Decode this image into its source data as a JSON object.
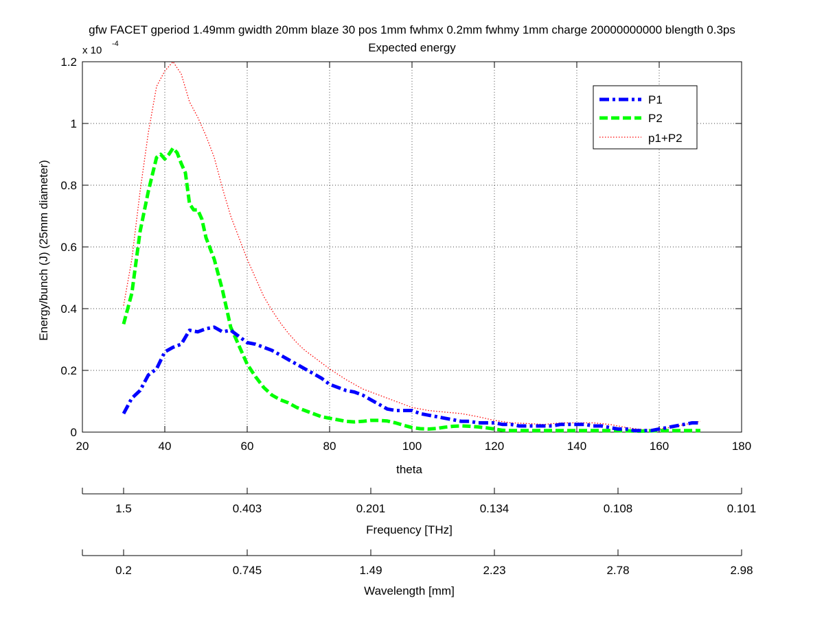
{
  "chart_data": {
    "type": "line",
    "title": "gfw FACET gperiod 1.49mm gwidth 20mm blaze 30 pos 1mm fwhmx 0.2mm fwhmy 1mm charge 20000000000 blength 0.3ps",
    "subtitle": "Expected energy",
    "xlabel": "theta",
    "ylabel": "Energy/bunch (J) (25mm diameter)",
    "y_exponent_label": {
      "base": "x 10",
      "exponent": "-4"
    },
    "xlim": [
      20,
      180
    ],
    "ylim": [
      0,
      0.00012
    ],
    "x_ticks": [
      20,
      40,
      60,
      80,
      100,
      120,
      140,
      160,
      180
    ],
    "y_ticks": [
      0,
      2e-05,
      4e-05,
      6e-05,
      8e-05,
      0.0001,
      0.00012
    ],
    "y_tick_labels": [
      "0",
      "0.2",
      "0.4",
      "0.6",
      "0.8",
      "1",
      "1.2"
    ],
    "grid": true,
    "legend_position": "top-right",
    "secondary_axes": [
      {
        "label": "Frequency [THz]",
        "ticks": [
          {
            "theta": 30,
            "label": "1.5"
          },
          {
            "theta": 60,
            "label": "0.403"
          },
          {
            "theta": 90,
            "label": "0.201"
          },
          {
            "theta": 120,
            "label": "0.134"
          },
          {
            "theta": 150,
            "label": "0.108"
          },
          {
            "theta": 180,
            "label": "0.101"
          }
        ]
      },
      {
        "label": "Wavelength [mm]",
        "ticks": [
          {
            "theta": 30,
            "label": "0.2"
          },
          {
            "theta": 60,
            "label": "0.745"
          },
          {
            "theta": 90,
            "label": "1.49"
          },
          {
            "theta": 120,
            "label": "2.23"
          },
          {
            "theta": 150,
            "label": "2.78"
          },
          {
            "theta": 180,
            "label": "2.98"
          }
        ]
      }
    ],
    "series": [
      {
        "name": "P1",
        "color": "#0000ff",
        "style": "dashdot",
        "x": [
          30,
          32,
          34,
          36,
          38,
          40,
          42,
          44,
          46,
          48,
          50,
          52,
          54,
          56,
          58,
          60,
          62,
          64,
          66,
          68,
          70,
          72,
          74,
          76,
          78,
          80,
          82,
          84,
          86,
          88,
          90,
          92,
          94,
          96,
          98,
          100,
          102,
          104,
          106,
          108,
          110,
          112,
          114,
          116,
          118,
          120,
          122,
          124,
          126,
          128,
          130,
          132,
          134,
          136,
          138,
          140,
          142,
          144,
          146,
          148,
          150,
          152,
          154,
          156,
          158,
          160,
          162,
          164,
          166,
          168,
          170
        ],
        "values": [
          6e-06,
          1.1e-05,
          1.35e-05,
          1.85e-05,
          2.05e-05,
          2.6e-05,
          2.75e-05,
          2.85e-05,
          3.3e-05,
          3.25e-05,
          3.35e-05,
          3.4e-05,
          3.25e-05,
          3.3e-05,
          3.1e-05,
          2.9e-05,
          2.85e-05,
          2.75e-05,
          2.65e-05,
          2.5e-05,
          2.35e-05,
          2.2e-05,
          2.05e-05,
          1.9e-05,
          1.75e-05,
          1.55e-05,
          1.45e-05,
          1.35e-05,
          1.3e-05,
          1.2e-05,
          1.05e-05,
          9e-06,
          7.5e-06,
          7e-06,
          7e-06,
          7e-06,
          6e-06,
          5.5e-06,
          5e-06,
          4.5e-06,
          4e-06,
          3.5e-06,
          3.5e-06,
          3e-06,
          3e-06,
          3e-06,
          2.5e-06,
          2.5e-06,
          2e-06,
          2e-06,
          2e-06,
          2e-06,
          2e-06,
          2.5e-06,
          2.5e-06,
          2.5e-06,
          2.5e-06,
          2e-06,
          2e-06,
          1.5e-06,
          1e-06,
          1e-06,
          5e-07,
          5e-07,
          5e-07,
          1e-06,
          1.5e-06,
          2e-06,
          2.5e-06,
          3e-06,
          3e-06
        ]
      },
      {
        "name": "P2",
        "color": "#00ff00",
        "style": "dashed",
        "x": [
          30,
          32,
          34,
          36,
          38,
          39,
          40,
          41,
          42,
          43,
          44,
          45,
          46,
          47,
          48,
          49,
          50,
          52,
          54,
          56,
          58,
          60,
          62,
          64,
          66,
          68,
          70,
          72,
          74,
          76,
          78,
          80,
          82,
          84,
          86,
          88,
          90,
          92,
          94,
          96,
          98,
          100,
          102,
          104,
          106,
          108,
          110,
          112,
          114,
          116,
          118,
          120,
          122,
          124,
          126,
          128,
          130,
          135,
          140,
          145,
          150,
          155,
          160,
          165,
          170
        ],
        "values": [
          3.5e-05,
          4.5e-05,
          6.5e-05,
          7.8e-05,
          8.9e-05,
          9e-05,
          8.85e-05,
          9e-05,
          9.2e-05,
          9.05e-05,
          8.7e-05,
          8.4e-05,
          7.4e-05,
          7.2e-05,
          7.2e-05,
          6.9e-05,
          6.3e-05,
          5.6e-05,
          4.6e-05,
          3.4e-05,
          2.8e-05,
          2.2e-05,
          1.8e-05,
          1.45e-05,
          1.2e-05,
          1.05e-05,
          9.5e-06,
          8e-06,
          7e-06,
          6e-06,
          5e-06,
          4.5e-06,
          4e-06,
          3.5e-06,
          3.3e-06,
          3.5e-06,
          3.8e-06,
          3.8e-06,
          3.6e-06,
          3e-06,
          2.2e-06,
          1.5e-06,
          1.1e-06,
          1e-06,
          1.2e-06,
          1.6e-06,
          1.9e-06,
          2e-06,
          1.9e-06,
          1.7e-06,
          1.4e-06,
          1e-06,
          6e-07,
          5e-07,
          5e-07,
          5e-07,
          5e-07,
          5e-07,
          5e-07,
          5e-07,
          5e-07,
          3e-07,
          5e-07,
          5e-07,
          5e-07
        ]
      },
      {
        "name": "p1+P2",
        "color": "#ff0000",
        "style": "dotted",
        "x": [
          30,
          32,
          34,
          36,
          38,
          40,
          42,
          44,
          46,
          48,
          50,
          52,
          54,
          56,
          58,
          60,
          62,
          64,
          66,
          68,
          70,
          72,
          74,
          76,
          78,
          80,
          84,
          88,
          92,
          96,
          100,
          104,
          108,
          112,
          116,
          120,
          124,
          128,
          132,
          136,
          140,
          144,
          148,
          152,
          156,
          160,
          164,
          168,
          170
        ],
        "values": [
          4.1e-05,
          5.6e-05,
          7.8e-05,
          9.7e-05,
          0.000112,
          0.000117,
          0.00012,
          0.000116,
          0.000107,
          0.000102,
          9.6e-05,
          8.9e-05,
          7.9e-05,
          7e-05,
          6.3e-05,
          5.6e-05,
          5e-05,
          4.4e-05,
          3.95e-05,
          3.55e-05,
          3.2e-05,
          2.9e-05,
          2.65e-05,
          2.45e-05,
          2.25e-05,
          2.05e-05,
          1.7e-05,
          1.4e-05,
          1.2e-05,
          1e-05,
          8e-06,
          7e-06,
          6.5e-06,
          6e-06,
          5e-06,
          3.8e-06,
          3e-06,
          2.8e-06,
          2.5e-06,
          3e-06,
          3e-06,
          3e-06,
          2.5e-06,
          1.5e-06,
          8e-07,
          1e-06,
          1.8e-06,
          3e-06,
          3.5e-06
        ]
      }
    ]
  }
}
